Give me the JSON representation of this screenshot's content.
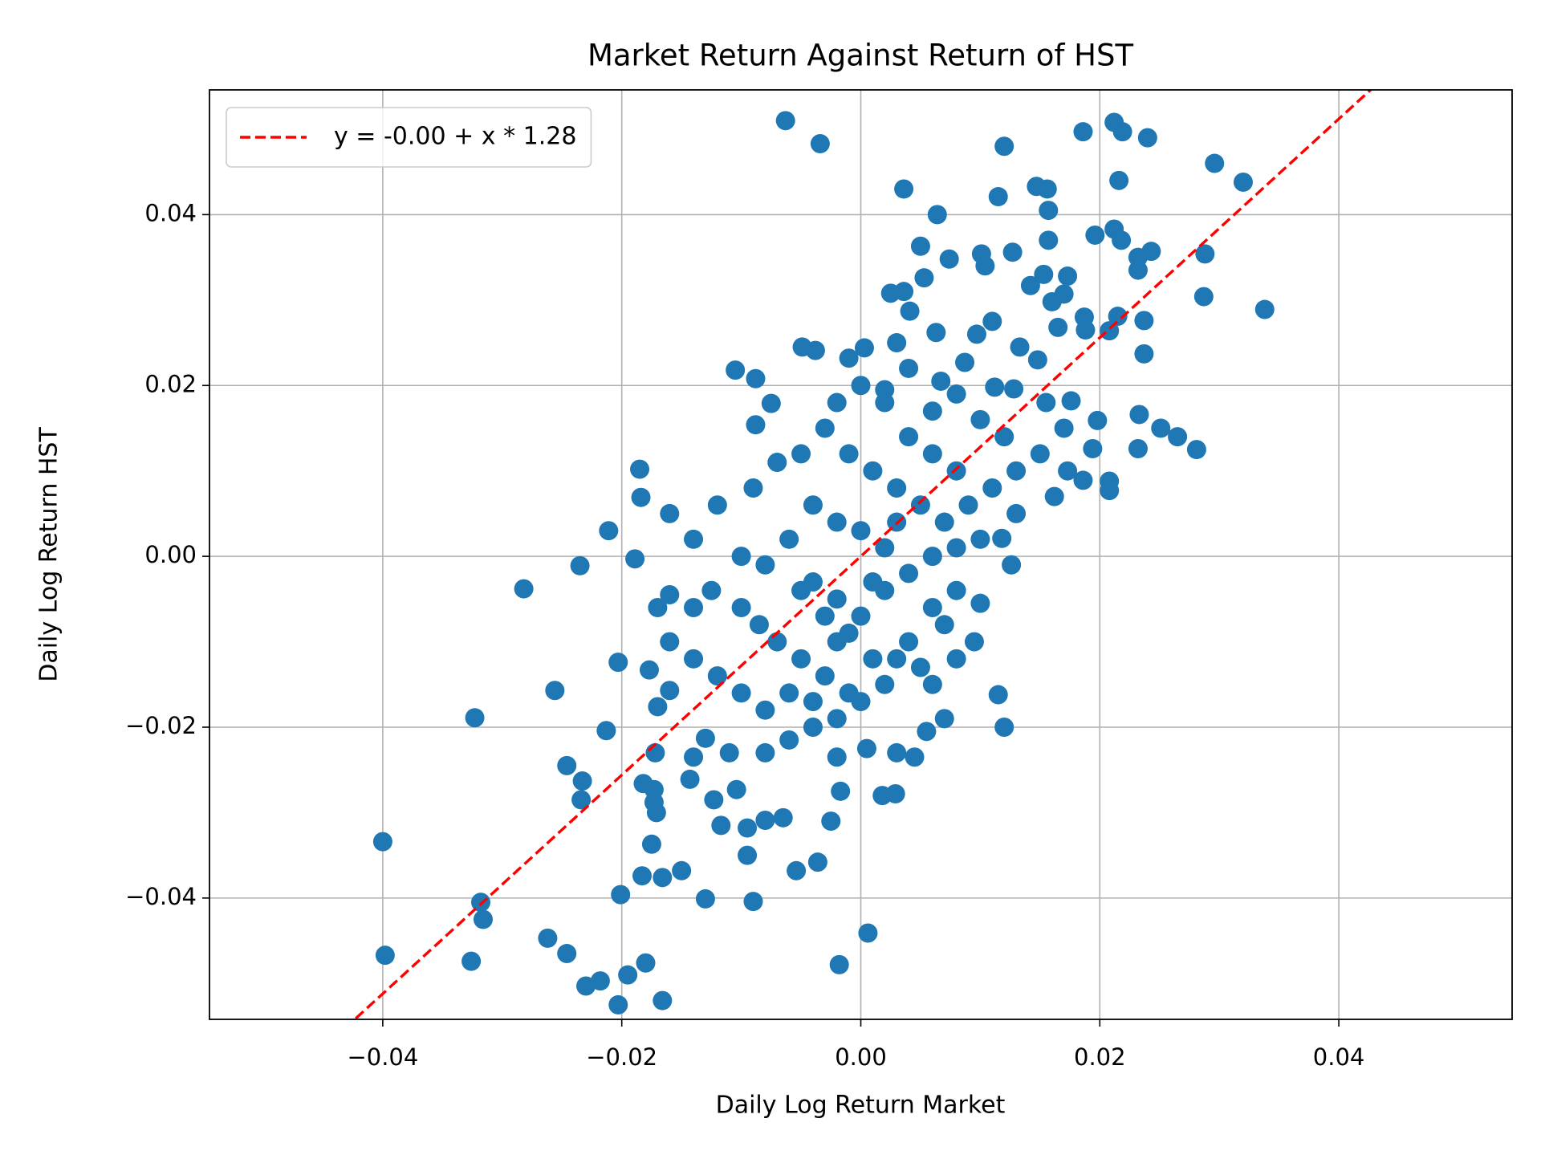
{
  "chart_data": {
    "type": "scatter",
    "title": "Market Return Against Return of HST",
    "x_label": "Daily Log Return Market",
    "y_label": "Daily Log Return HST",
    "xlim": [
      -0.0545,
      0.0545
    ],
    "ylim": [
      -0.0542,
      0.0546
    ],
    "xticks": [
      {
        "value": -0.04,
        "label": "−0.04"
      },
      {
        "value": -0.02,
        "label": "−0.02"
      },
      {
        "value": 0,
        "label": "0.00"
      },
      0.02,
      0.04
    ],
    "yticks": [
      {
        "value": -0.04,
        "label": "−0.04"
      },
      {
        "value": -0.02,
        "label": "−0.02"
      },
      {
        "value": 0,
        "label": "0.00"
      },
      0.02,
      0.04
    ],
    "grid": true,
    "legend": "upper left",
    "series": [
      {
        "color": "#1f77b4",
        "x": [
          -0.0063,
          -0.0034,
          0.012,
          0.0186,
          0.0212,
          0.0219,
          0.024,
          0.0296,
          0.032,
          0.0216,
          0.0036,
          0.0115,
          0.0147,
          0.0156,
          0.0157,
          0.0064,
          0.0196,
          0.0212,
          0.0218,
          0.0157,
          0.005,
          0.0074,
          0.0101,
          0.0127,
          0.0232,
          0.0243,
          0.0232,
          0.0288,
          0.0153,
          0.0173,
          0.0053,
          0.0142,
          0.017,
          0.0104,
          0.0287,
          0.0338,
          0.0025,
          0.0036,
          0.016,
          0.0187,
          0.0215,
          0.0237,
          0.011,
          0.0165,
          0.0188,
          0.0208,
          0.0237,
          0.0041,
          0.003,
          0.0063,
          -0.0049,
          -0.0038,
          -0.001,
          0.0003,
          -0.0105,
          -0.0088,
          0.0087,
          0.0097,
          0.0133,
          0.0148,
          -0.0075,
          0.002,
          0.0067,
          0.0112,
          0.0128,
          0.0155,
          0.0176,
          0.0198,
          0.0233,
          0.0251,
          0.0265,
          0.0281,
          0.0232,
          0.0194,
          0.0186,
          0.0208,
          0.0208,
          0.0162,
          0.0173,
          0.0126,
          0.0118,
          0.013,
          -0.0088,
          -0.0185,
          -0.0184,
          -0.0211,
          -0.0235,
          -0.0282,
          -0.0189,
          -0.0203,
          -0.0256,
          -0.0323,
          -0.0213,
          -0.0246,
          -0.0233,
          -0.0234,
          -0.04,
          -0.0398,
          -0.0326,
          -0.0318,
          -0.0316,
          -0.0262,
          -0.0246,
          -0.023,
          -0.0218,
          -0.0203,
          -0.0195,
          -0.018,
          -0.0166,
          -0.0201,
          -0.0183,
          -0.0166,
          -0.015,
          -0.013,
          -0.009,
          -0.0175,
          -0.0095,
          -0.0054,
          -0.0036,
          0.0006,
          -0.0018,
          -0.0171,
          -0.0173,
          -0.0182,
          -0.0173,
          -0.0143,
          -0.0123,
          -0.0117,
          -0.0095,
          -0.008,
          -0.0065,
          -0.0025,
          -0.0017,
          0.0018,
          0.0029,
          -0.0104,
          -0.0172,
          -0.0177,
          -0.017,
          -0.016,
          -0.014,
          -0.013,
          -0.011,
          -0.008,
          -0.006,
          -0.004,
          -0.002,
          0.0005,
          0.003,
          0.0045,
          0.0055,
          0.007,
          0.0095,
          0.0115,
          0.012,
          0.008,
          0.007,
          0.005,
          -0.017,
          -0.016,
          -0.014,
          -0.0125,
          -0.01,
          -0.0085,
          -0.007,
          -0.005,
          -0.003,
          -0.001,
          -0.016,
          -0.014,
          -0.012,
          -0.01,
          -0.008,
          -0.006,
          -0.004,
          -0.002,
          0.0,
          0.002,
          0.004,
          0.006,
          0.008,
          0.01,
          -0.016,
          -0.014,
          -0.012,
          -0.01,
          -0.008,
          -0.006,
          -0.004,
          -0.002,
          0.0,
          0.002,
          0.004,
          0.006,
          0.008,
          0.01,
          -0.009,
          -0.007,
          -0.005,
          -0.003,
          -0.001,
          0.001,
          0.003,
          0.005,
          0.007,
          0.009,
          0.011,
          0.013,
          0.015,
          0.017,
          -0.004,
          -0.002,
          0.0,
          0.002,
          0.004,
          0.006,
          0.008,
          0.01,
          0.012,
          0.002,
          0.0,
          -0.002,
          0.004,
          0.006,
          0.008,
          0.003,
          0.001,
          -0.001,
          -0.003,
          -0.005,
          0.003,
          0.006,
          0.001,
          -0.002
        ],
        "values": [
          0.051,
          0.0483,
          0.048,
          0.0497,
          0.0508,
          0.0497,
          0.049,
          0.046,
          0.0438,
          0.044,
          0.043,
          0.0421,
          0.0433,
          0.043,
          0.0405,
          0.04,
          0.0376,
          0.0383,
          0.037,
          0.037,
          0.0363,
          0.0348,
          0.0354,
          0.0356,
          0.035,
          0.0357,
          0.0335,
          0.0354,
          0.033,
          0.0328,
          0.0326,
          0.0317,
          0.0307,
          0.034,
          0.0304,
          0.0289,
          0.0308,
          0.031,
          0.0298,
          0.028,
          0.0281,
          0.0276,
          0.0275,
          0.0268,
          0.0265,
          0.0264,
          0.0237,
          0.0287,
          0.025,
          0.0262,
          0.0245,
          0.0241,
          0.0232,
          0.0244,
          0.0218,
          0.0208,
          0.0227,
          0.026,
          0.0245,
          0.023,
          0.0179,
          0.0195,
          0.0205,
          0.0198,
          0.0196,
          0.018,
          0.0182,
          0.0159,
          0.0166,
          0.015,
          0.014,
          0.0125,
          0.0126,
          0.0126,
          0.0089,
          0.0088,
          0.0077,
          0.007,
          0.01,
          -0.001,
          0.0021,
          0.005,
          0.0154,
          0.0102,
          0.0069,
          0.003,
          -0.0011,
          -0.0038,
          -0.0003,
          -0.0124,
          -0.0157,
          -0.0189,
          -0.0204,
          -0.0245,
          -0.0263,
          -0.0285,
          -0.0334,
          -0.0467,
          -0.0474,
          -0.0405,
          -0.0425,
          -0.0447,
          -0.0465,
          -0.0503,
          -0.0497,
          -0.0525,
          -0.049,
          -0.0476,
          -0.052,
          -0.0396,
          -0.0374,
          -0.0376,
          -0.0368,
          -0.0401,
          -0.0404,
          -0.0337,
          -0.035,
          -0.0368,
          -0.0358,
          -0.0441,
          -0.0478,
          -0.03,
          -0.0288,
          -0.0266,
          -0.0273,
          -0.0261,
          -0.0285,
          -0.0315,
          -0.0318,
          -0.0309,
          -0.0306,
          -0.031,
          -0.0275,
          -0.028,
          -0.0278,
          -0.0273,
          -0.023,
          -0.0133,
          -0.0176,
          -0.0157,
          -0.0235,
          -0.0213,
          -0.023,
          -0.023,
          -0.0215,
          -0.02,
          -0.0235,
          -0.0225,
          -0.023,
          -0.0235,
          -0.0205,
          -0.019,
          -0.01,
          -0.0162,
          -0.02,
          -0.012,
          -0.008,
          -0.013,
          -0.006,
          -0.0045,
          -0.006,
          -0.004,
          -0.006,
          -0.008,
          -0.01,
          -0.012,
          -0.014,
          -0.016,
          -0.01,
          -0.012,
          -0.014,
          -0.016,
          -0.018,
          -0.016,
          -0.017,
          -0.019,
          -0.017,
          -0.015,
          -0.01,
          -0.006,
          -0.004,
          -0.0055,
          0.005,
          0.002,
          0.006,
          0.0,
          -0.001,
          0.002,
          -0.003,
          -0.005,
          -0.007,
          -0.004,
          -0.002,
          0.0,
          0.001,
          0.002,
          0.008,
          0.011,
          0.012,
          0.015,
          0.012,
          0.01,
          0.008,
          0.006,
          0.004,
          0.006,
          0.008,
          0.01,
          0.012,
          0.015,
          0.006,
          0.004,
          0.003,
          0.001,
          0.014,
          0.017,
          0.019,
          0.016,
          0.014,
          0.018,
          0.02,
          0.018,
          0.022,
          0.012,
          0.01,
          0.004,
          -0.003,
          -0.009,
          -0.007,
          -0.004,
          -0.012,
          -0.015,
          -0.012,
          -0.01
        ]
      }
    ],
    "fit": {
      "name": "y = -0.00 + x * 1.28",
      "color": "#ff0000",
      "intercept": -0.0,
      "slope": 1.28
    }
  }
}
